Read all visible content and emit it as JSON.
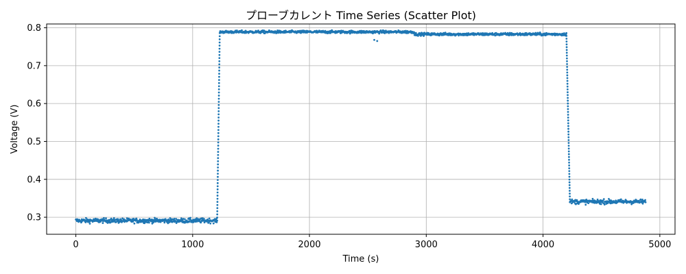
{
  "chart_data": {
    "type": "scatter",
    "title": "プローブカレント Time Series (Scatter Plot)",
    "xlabel": "Time (s)",
    "ylabel": "Voltage (V)",
    "xlim": [
      -250,
      5130
    ],
    "ylim": [
      0.255,
      0.81
    ],
    "xticks": [
      0,
      1000,
      2000,
      3000,
      4000,
      5000
    ],
    "yticks": [
      0.3,
      0.4,
      0.5,
      0.6,
      0.7,
      0.8
    ],
    "xtick_labels": [
      "0",
      "1000",
      "2000",
      "3000",
      "4000",
      "5000"
    ],
    "ytick_labels": [
      "0.3",
      "0.4",
      "0.5",
      "0.6",
      "0.7",
      "0.8"
    ],
    "grid": true,
    "marker_color": "#1f77b4",
    "series": [
      {
        "segments": [
          {
            "x_start": 0,
            "x_end": 1210,
            "level": 0.291,
            "noise": 0.005
          },
          {
            "x_start": 1210,
            "x_end": 1232,
            "level_from": 0.291,
            "level_to": 0.786,
            "transition": true
          },
          {
            "x_start": 1232,
            "x_end": 2900,
            "level": 0.789,
            "noise": 0.003
          },
          {
            "x_start": 2900,
            "x_end": 4200,
            "level": 0.783,
            "noise": 0.003
          },
          {
            "x_start": 4200,
            "x_end": 4230,
            "level_from": 0.786,
            "level_to": 0.34,
            "transition": true
          },
          {
            "x_start": 4230,
            "x_end": 4880,
            "level": 0.341,
            "noise": 0.005
          }
        ],
        "outliers": [
          {
            "x": 2555,
            "y": 0.768
          },
          {
            "x": 2580,
            "y": 0.765
          }
        ]
      }
    ]
  }
}
